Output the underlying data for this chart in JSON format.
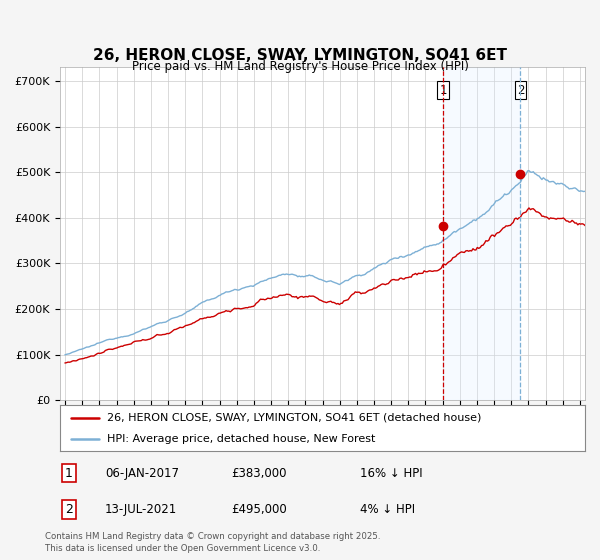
{
  "title": "26, HERON CLOSE, SWAY, LYMINGTON, SO41 6ET",
  "subtitle": "Price paid vs. HM Land Registry's House Price Index (HPI)",
  "ylabel_ticks": [
    "£0",
    "£100K",
    "£200K",
    "£300K",
    "£400K",
    "£500K",
    "£600K",
    "£700K"
  ],
  "ytick_values": [
    0,
    100000,
    200000,
    300000,
    400000,
    500000,
    600000,
    700000
  ],
  "ylim": [
    0,
    730000
  ],
  "xlim_start": 1994.7,
  "xlim_end": 2025.3,
  "vline1_x": 2017.04,
  "vline2_x": 2021.54,
  "sale1_label": "1",
  "sale2_label": "2",
  "sale1_date": "06-JAN-2017",
  "sale1_price": "£383,000",
  "sale1_hpi": "16% ↓ HPI",
  "sale2_date": "13-JUL-2021",
  "sale2_price": "£495,000",
  "sale2_hpi": "4% ↓ HPI",
  "legend_line1": "26, HERON CLOSE, SWAY, LYMINGTON, SO41 6ET (detached house)",
  "legend_line2": "HPI: Average price, detached house, New Forest",
  "footer": "Contains HM Land Registry data © Crown copyright and database right 2025.\nThis data is licensed under the Open Government Licence v3.0.",
  "line_color_red": "#cc0000",
  "line_color_blue": "#7db0d5",
  "vline1_color": "#cc0000",
  "vline2_color": "#7db0d5",
  "shade_color": "#ddeeff",
  "background_color": "#f5f5f5",
  "plot_bg": "#ffffff"
}
